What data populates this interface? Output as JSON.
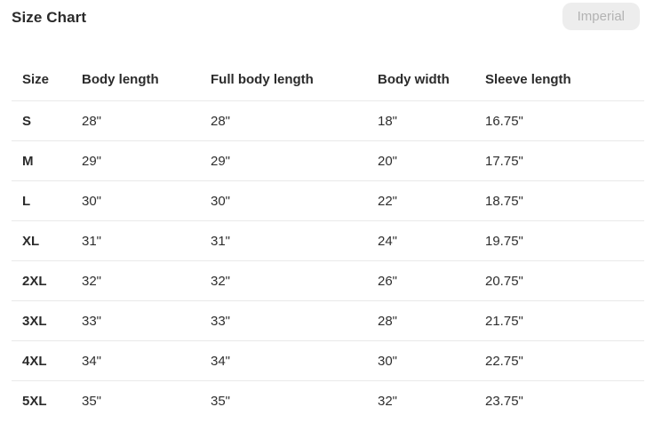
{
  "header": {
    "title": "Size Chart",
    "unit_button_label": "Imperial"
  },
  "size_table": {
    "columns": [
      "Size",
      "Body length",
      "Full body length",
      "Body width",
      "Sleeve length"
    ],
    "rows": [
      [
        "S",
        "28\"",
        "28\"",
        "18\"",
        "16.75\""
      ],
      [
        "M",
        "29\"",
        "29\"",
        "20\"",
        "17.75\""
      ],
      [
        "L",
        "30\"",
        "30\"",
        "22\"",
        "18.75\""
      ],
      [
        "XL",
        "31\"",
        "31\"",
        "24\"",
        "19.75\""
      ],
      [
        "2XL",
        "32\"",
        "32\"",
        "26\"",
        "20.75\""
      ],
      [
        "3XL",
        "33\"",
        "33\"",
        "28\"",
        "21.75\""
      ],
      [
        "4XL",
        "34\"",
        "34\"",
        "30\"",
        "22.75\""
      ],
      [
        "5XL",
        "35\"",
        "35\"",
        "32\"",
        "23.75\""
      ]
    ]
  },
  "colors": {
    "text": "#2e2e2e",
    "divider": "#e9e9e9",
    "pill_background": "#ededed",
    "pill_text": "#b3b3b3"
  }
}
